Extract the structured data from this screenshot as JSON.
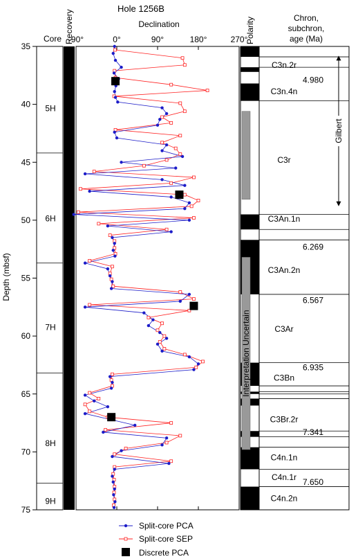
{
  "chart_data": {
    "type": "scatter",
    "title": "Hole 1256B",
    "xlabel": "Declination",
    "ylabel": "Depth (mbsf)",
    "xlim": [
      -90,
      270
    ],
    "ylim": [
      75,
      35
    ],
    "x_ticks": [
      "-90°",
      "0°",
      "90°",
      "180°",
      "270°"
    ],
    "x_tick_values": [
      -90,
      0,
      90,
      180,
      270
    ],
    "y_ticks": [
      35,
      40,
      45,
      50,
      55,
      60,
      65,
      70,
      75
    ],
    "columns": {
      "core": "Core",
      "recovery": "Recovery",
      "polarity": "Polarity",
      "chron": "Chron, subchron, age (Ma)"
    },
    "cores": [
      {
        "label": "5H",
        "top": 35.0,
        "bottom": 44.2
      },
      {
        "label": "6H",
        "top": 44.2,
        "bottom": 53.7
      },
      {
        "label": "7H",
        "top": 53.7,
        "bottom": 63.2
      },
      {
        "label": "8H",
        "top": 63.2,
        "bottom": 72.7
      },
      {
        "label": "9H",
        "top": 72.7,
        "bottom": 75.0
      }
    ],
    "core_label_depths": [
      40.3,
      49.8,
      59.2,
      69.2,
      74.2
    ],
    "polarity_normal": [
      [
        35.0,
        35.9
      ],
      [
        36.8,
        37.2
      ],
      [
        38.2,
        39.7
      ],
      [
        49.5,
        50.8
      ],
      [
        51.7,
        56.4
      ],
      [
        62.3,
        64.3
      ],
      [
        64.8,
        65.0
      ],
      [
        65.4,
        66.0
      ],
      [
        68.2,
        68.7
      ],
      [
        69.6,
        71.5
      ],
      [
        73.0,
        75.0
      ]
    ],
    "uncertain_bars": [
      [
        40.6,
        48.2
      ],
      [
        53.2,
        69.8
      ]
    ],
    "uncertain_label": "Interpretation Uncertain",
    "chrons": [
      {
        "label": "C3n.2r",
        "depth": 36.6
      },
      {
        "label": "C3n.4n",
        "depth": 38.9
      },
      {
        "label": "C3r",
        "depth": 44.8
      },
      {
        "label": "C3An.1n",
        "depth": 49.9
      },
      {
        "label": "C3An.2n",
        "depth": 54.3
      },
      {
        "label": "C3Ar",
        "depth": 59.4
      },
      {
        "label": "C3Bn",
        "depth": 63.6
      },
      {
        "label": "C3Br.2r",
        "depth": 67.2
      },
      {
        "label": "C4n.1n",
        "depth": 70.5
      },
      {
        "label": "C4n.1r",
        "depth": 72.2
      },
      {
        "label": "C4n.2n",
        "depth": 74.0
      }
    ],
    "chron_lines": [
      35.9,
      36.8,
      39.7,
      49.5,
      50.8,
      51.7,
      56.4,
      62.3,
      64.3,
      64.8,
      65.0,
      65.4,
      68.2,
      68.7,
      69.6,
      71.5,
      73.0
    ],
    "ages": [
      {
        "label": "4.980",
        "depth": 37.9
      },
      {
        "label": "6.269",
        "depth": 52.3
      },
      {
        "label": "6.567",
        "depth": 56.9
      },
      {
        "label": "6.935",
        "depth": 62.7
      },
      {
        "label": "7.341",
        "depth": 68.3
      },
      {
        "label": "7.650",
        "depth": 72.6
      }
    ],
    "gilbert_label": "Gilbert",
    "gilbert_range": [
      35.8,
      48.8
    ],
    "series": [
      {
        "name": "Split-core PCA",
        "color": "#1c1cc8",
        "points": [
          [
            35.0,
            -5
          ],
          [
            35.6,
            -8
          ],
          [
            36.2,
            -3
          ],
          [
            36.8,
            10
          ],
          [
            37.3,
            -6
          ],
          [
            37.8,
            4
          ],
          [
            38.4,
            -2
          ],
          [
            38.9,
            -5
          ],
          [
            39.4,
            -3
          ],
          [
            39.8,
            2
          ],
          [
            40.3,
            100
          ],
          [
            40.8,
            110
          ],
          [
            41.3,
            95
          ],
          [
            41.8,
            90
          ],
          [
            42.4,
            -5
          ],
          [
            42.9,
            0
          ],
          [
            43.5,
            110
          ],
          [
            44.0,
            100
          ],
          [
            44.5,
            145
          ],
          [
            45.0,
            10
          ],
          [
            45.5,
            130
          ],
          [
            46.0,
            -70
          ],
          [
            46.5,
            100
          ],
          [
            47.0,
            150
          ],
          [
            47.5,
            -60
          ],
          [
            48.0,
            120
          ],
          [
            48.5,
            160
          ],
          [
            49.0,
            150
          ],
          [
            49.5,
            -95
          ],
          [
            50.0,
            160
          ],
          [
            50.5,
            -20
          ],
          [
            51.0,
            120
          ],
          [
            51.5,
            -10
          ],
          [
            52.0,
            -5
          ],
          [
            52.6,
            -8
          ],
          [
            53.1,
            -4
          ],
          [
            53.7,
            -70
          ],
          [
            54.2,
            -20
          ],
          [
            54.8,
            -15
          ],
          [
            55.3,
            -10
          ],
          [
            55.9,
            -12
          ],
          [
            56.4,
            160
          ],
          [
            57.0,
            140
          ],
          [
            57.5,
            -70
          ],
          [
            58.0,
            60
          ],
          [
            58.6,
            80
          ],
          [
            59.1,
            70
          ],
          [
            59.7,
            95
          ],
          [
            60.2,
            110
          ],
          [
            60.7,
            90
          ],
          [
            61.3,
            100
          ],
          [
            61.8,
            160
          ],
          [
            62.4,
            180
          ],
          [
            62.9,
            170
          ],
          [
            63.5,
            -15
          ],
          [
            64.0,
            -10
          ],
          [
            64.5,
            -12
          ],
          [
            65.1,
            -70
          ],
          [
            65.6,
            -50
          ],
          [
            66.1,
            -20
          ],
          [
            66.7,
            -70
          ],
          [
            67.2,
            -15
          ],
          [
            67.7,
            40
          ],
          [
            68.3,
            -30
          ],
          [
            68.8,
            110
          ],
          [
            69.4,
            100
          ],
          [
            69.9,
            10
          ],
          [
            70.4,
            -10
          ],
          [
            71.0,
            115
          ],
          [
            71.5,
            -5
          ],
          [
            72.1,
            -10
          ],
          [
            72.6,
            -8
          ],
          [
            73.2,
            -5
          ],
          [
            73.7,
            -7
          ],
          [
            74.3,
            -4
          ],
          [
            74.8,
            -6
          ]
        ]
      },
      {
        "name": "Split-core SEP",
        "color": "#ff2020",
        "points": [
          [
            35.3,
            -4
          ],
          [
            36.0,
            145
          ],
          [
            36.6,
            150
          ],
          [
            37.1,
            -5
          ],
          [
            37.7,
            -3
          ],
          [
            38.3,
            120
          ],
          [
            38.8,
            200
          ],
          [
            39.3,
            -6
          ],
          [
            39.9,
            140
          ],
          [
            40.6,
            150
          ],
          [
            41.1,
            100
          ],
          [
            41.6,
            120
          ],
          [
            42.2,
            -3
          ],
          [
            42.7,
            140
          ],
          [
            43.3,
            100
          ],
          [
            43.8,
            130
          ],
          [
            44.3,
            140
          ],
          [
            44.8,
            110
          ],
          [
            45.3,
            60
          ],
          [
            45.8,
            -50
          ],
          [
            46.3,
            170
          ],
          [
            46.8,
            120
          ],
          [
            47.3,
            -80
          ],
          [
            47.8,
            150
          ],
          [
            48.3,
            180
          ],
          [
            48.8,
            165
          ],
          [
            49.3,
            -85
          ],
          [
            49.8,
            170
          ],
          [
            50.3,
            -40
          ],
          [
            50.8,
            110
          ],
          [
            51.3,
            -15
          ],
          [
            51.8,
            -5
          ],
          [
            52.4,
            -5
          ],
          [
            52.9,
            -3
          ],
          [
            53.5,
            -60
          ],
          [
            54.0,
            -10
          ],
          [
            54.6,
            -15
          ],
          [
            55.1,
            -12
          ],
          [
            55.7,
            -8
          ],
          [
            56.2,
            140
          ],
          [
            56.8,
            170
          ],
          [
            57.3,
            -60
          ],
          [
            57.8,
            160
          ],
          [
            58.4,
            70
          ],
          [
            58.9,
            100
          ],
          [
            59.5,
            90
          ],
          [
            60.0,
            105
          ],
          [
            60.5,
            95
          ],
          [
            61.1,
            105
          ],
          [
            61.6,
            150
          ],
          [
            62.2,
            190
          ],
          [
            62.7,
            175
          ],
          [
            63.3,
            -10
          ],
          [
            63.8,
            -12
          ],
          [
            64.3,
            -10
          ],
          [
            64.9,
            -60
          ],
          [
            65.4,
            -40
          ],
          [
            65.9,
            -70
          ],
          [
            66.5,
            -60
          ],
          [
            67.0,
            -20
          ],
          [
            67.5,
            120
          ],
          [
            68.1,
            -25
          ],
          [
            68.6,
            140
          ],
          [
            69.2,
            110
          ],
          [
            69.7,
            20
          ],
          [
            70.2,
            -5
          ],
          [
            70.8,
            120
          ],
          [
            71.3,
            -5
          ],
          [
            71.9,
            -8
          ],
          [
            72.4,
            -6
          ],
          [
            73.0,
            -5
          ],
          [
            73.5,
            -6
          ],
          [
            74.1,
            -5
          ],
          [
            74.6,
            -7
          ]
        ]
      },
      {
        "name": "Discrete PCA",
        "color": "#000000",
        "points": [
          [
            38.0,
            -3
          ],
          [
            47.8,
            138
          ],
          [
            57.4,
            170
          ],
          [
            67.0,
            -12
          ]
        ]
      }
    ],
    "legend": [
      "Split-core PCA",
      "Split-core SEP",
      "Discrete PCA"
    ],
    "legend_position": "bottom"
  }
}
